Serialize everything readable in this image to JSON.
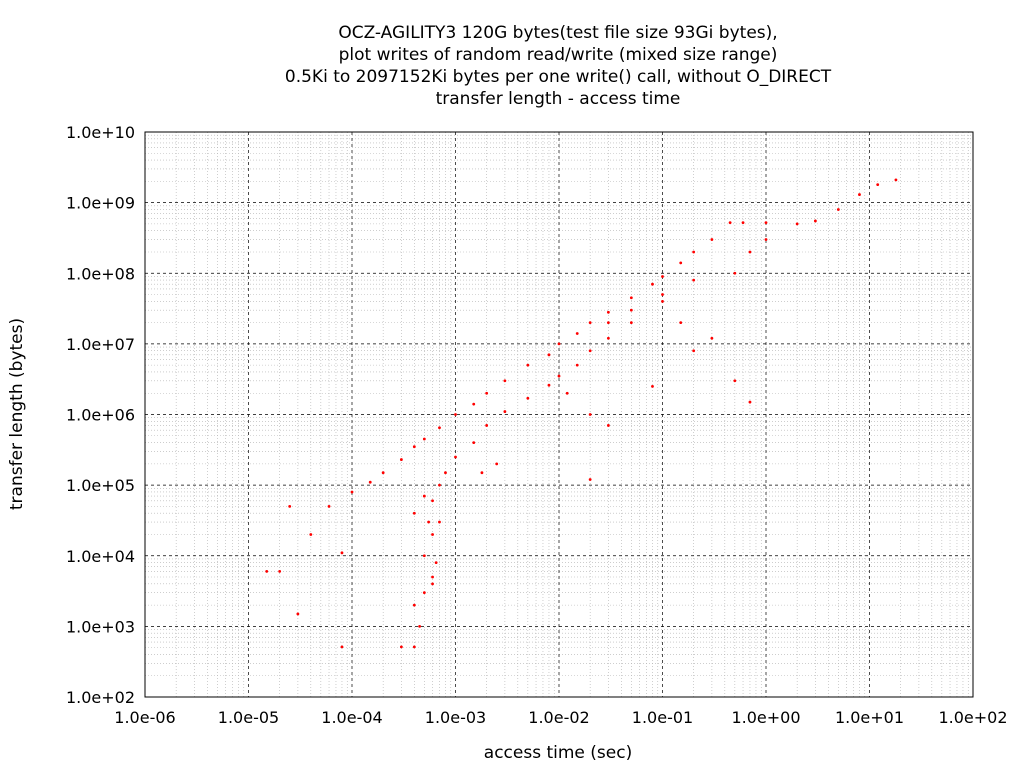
{
  "chart_data": {
    "type": "scatter",
    "title_lines": [
      "OCZ-AGILITY3 120G bytes(test file size 93Gi bytes),",
      "plot writes of random read/write (mixed size range)",
      "0.5Ki to 2097152Ki bytes per one write() call, without O_DIRECT",
      "transfer length - access time"
    ],
    "xlabel": "access time (sec)",
    "ylabel": "transfer length (bytes)",
    "x_scale": "log",
    "y_scale": "log",
    "xlim": [
      1e-06,
      100
    ],
    "ylim": [
      100,
      10000000000.0
    ],
    "x_ticks": [
      {
        "value": 1e-06,
        "label": "1.0e-06"
      },
      {
        "value": 1e-05,
        "label": "1.0e-05"
      },
      {
        "value": 0.0001,
        "label": "1.0e-04"
      },
      {
        "value": 0.001,
        "label": "1.0e-03"
      },
      {
        "value": 0.01,
        "label": "1.0e-02"
      },
      {
        "value": 0.1,
        "label": "1.0e-01"
      },
      {
        "value": 1,
        "label": "1.0e+00"
      },
      {
        "value": 10,
        "label": "1.0e+01"
      },
      {
        "value": 100,
        "label": "1.0e+02"
      }
    ],
    "y_ticks": [
      {
        "value": 100,
        "label": "1.0e+02"
      },
      {
        "value": 1000,
        "label": "1.0e+03"
      },
      {
        "value": 10000,
        "label": "1.0e+04"
      },
      {
        "value": 100000,
        "label": "1.0e+05"
      },
      {
        "value": 1000000,
        "label": "1.0e+06"
      },
      {
        "value": 10000000,
        "label": "1.0e+07"
      },
      {
        "value": 100000000,
        "label": "1.0e+08"
      },
      {
        "value": 1000000000,
        "label": "1.0e+09"
      },
      {
        "value": 10000000000,
        "label": "1.0e+10"
      }
    ],
    "grid": true,
    "series": [
      {
        "color": "#ff0000",
        "points": [
          [
            8e-05,
            512
          ],
          [
            8e-05,
            11000
          ],
          [
            1.5e-05,
            6000
          ],
          [
            2e-05,
            6000
          ],
          [
            3e-05,
            1500
          ],
          [
            2.5e-05,
            50000
          ],
          [
            4e-05,
            20000
          ],
          [
            6e-05,
            50000
          ],
          [
            0.0001,
            80000
          ],
          [
            0.00015,
            110000
          ],
          [
            0.0002,
            150000
          ],
          [
            0.0003,
            230000
          ],
          [
            0.0004,
            350000
          ],
          [
            0.0005,
            450000
          ],
          [
            0.0007,
            650000
          ],
          [
            0.001,
            1000000
          ],
          [
            0.0015,
            1400000
          ],
          [
            0.002,
            2000000
          ],
          [
            0.003,
            3000000
          ],
          [
            0.005,
            5000000
          ],
          [
            0.008,
            7000000
          ],
          [
            0.01,
            10000000
          ],
          [
            0.015,
            14000000
          ],
          [
            0.02,
            20000000
          ],
          [
            0.03,
            28000000
          ],
          [
            0.05,
            45000000
          ],
          [
            0.08,
            70000000
          ],
          [
            0.1,
            90000000
          ],
          [
            0.15,
            140000000
          ],
          [
            0.2,
            200000000
          ],
          [
            0.3,
            300000000
          ],
          [
            0.45,
            520000000
          ],
          [
            0.6,
            520000000
          ],
          [
            1.0,
            520000000
          ],
          [
            2.0,
            500000000
          ],
          [
            3.0,
            550000000
          ],
          [
            5.0,
            800000000
          ],
          [
            8.0,
            1300000000
          ],
          [
            12.0,
            1800000000
          ],
          [
            18.0,
            2100000000
          ],
          [
            0.0003,
            512
          ],
          [
            0.0004,
            512
          ],
          [
            0.00045,
            1000
          ],
          [
            0.0005,
            3000
          ],
          [
            0.0005,
            10000
          ],
          [
            0.00055,
            30000
          ],
          [
            0.0006,
            60000
          ],
          [
            0.0007,
            100000
          ],
          [
            0.0008,
            150000
          ],
          [
            0.001,
            250000
          ],
          [
            0.0015,
            400000
          ],
          [
            0.002,
            700000
          ],
          [
            0.003,
            1100000
          ],
          [
            0.005,
            1700000
          ],
          [
            0.008,
            2600000
          ],
          [
            0.01,
            3500000
          ],
          [
            0.015,
            5000000
          ],
          [
            0.02,
            8000000
          ],
          [
            0.03,
            12000000
          ],
          [
            0.05,
            20000000
          ],
          [
            0.1,
            40000000
          ],
          [
            0.2,
            80000000
          ],
          [
            0.5,
            100000000
          ],
          [
            0.7,
            200000000
          ],
          [
            1.0,
            300000000
          ],
          [
            0.0006,
            20000
          ],
          [
            0.0006,
            5000
          ],
          [
            0.00065,
            8000
          ],
          [
            0.0004,
            2000
          ],
          [
            0.0004,
            40000
          ],
          [
            0.0005,
            70000
          ],
          [
            0.0006,
            4000
          ],
          [
            0.0007,
            30000
          ],
          [
            0.03,
            20000000
          ],
          [
            0.05,
            30000000
          ],
          [
            0.1,
            50000000
          ],
          [
            0.15,
            20000000
          ],
          [
            0.2,
            8000000
          ],
          [
            0.3,
            12000000
          ],
          [
            0.5,
            3000000
          ],
          [
            0.7,
            1500000
          ],
          [
            0.012,
            2000000
          ],
          [
            0.02,
            1000000
          ],
          [
            0.03,
            700000
          ],
          [
            0.08,
            2500000
          ],
          [
            0.0018,
            150000
          ],
          [
            0.0025,
            200000
          ],
          [
            0.02,
            120000
          ]
        ]
      }
    ]
  }
}
